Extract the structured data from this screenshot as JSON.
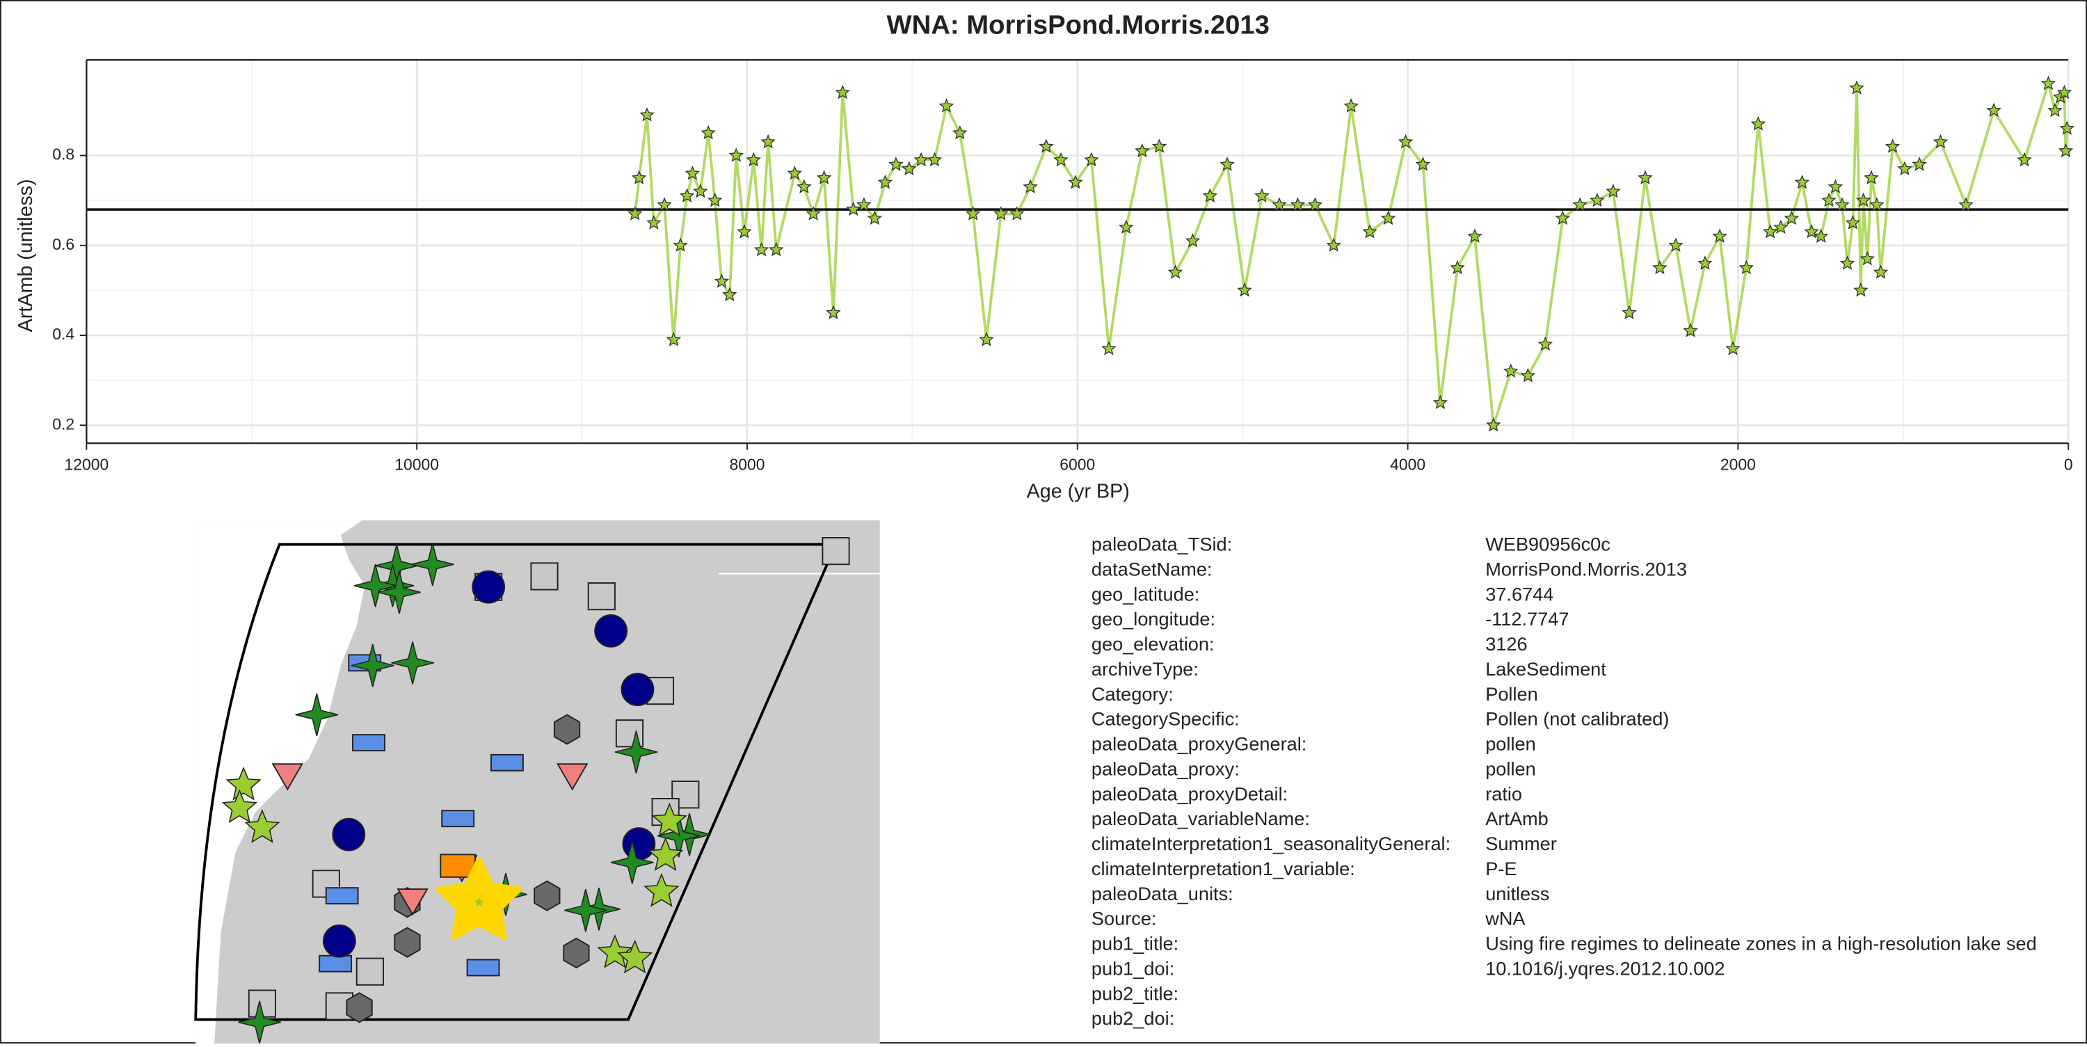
{
  "chart_data": {
    "type": "line",
    "title": "WNA: MorrisPond.Morris.2013",
    "xlabel": "Age (yr BP)",
    "ylabel": "ArtAmb (unitless)",
    "xlim": [
      12000,
      0
    ],
    "ylim": [
      0.16,
      0.995
    ],
    "xticks": [
      12000,
      10000,
      8000,
      6000,
      4000,
      2000,
      0
    ],
    "yticks": [
      0.2,
      0.4,
      0.6,
      0.8
    ],
    "grid": true,
    "marker": "star",
    "color": "#9acd32",
    "hline": 0.68,
    "x": [
      8679,
      8654,
      8606,
      8565,
      8501,
      8445,
      8404,
      8364,
      8331,
      8283,
      8235,
      8195,
      8154,
      8106,
      8066,
      8017,
      7961,
      7913,
      7873,
      7824,
      7712,
      7655,
      7599,
      7534,
      7478,
      7422,
      7357,
      7293,
      7228,
      7164,
      7099,
      7019,
      6946,
      6865,
      6793,
      6712,
      6632,
      6551,
      6463,
      6366,
      6285,
      6189,
      6100,
      6012,
      5915,
      5810,
      5705,
      5608,
      5504,
      5407,
      5302,
      5197,
      5093,
      4988,
      4883,
      4778,
      4666,
      4561,
      4448,
      4343,
      4230,
      4118,
      4013,
      3908,
      3803,
      3699,
      3594,
      3481,
      3376,
      3272,
      3167,
      3062,
      2957,
      2853,
      2756,
      2659,
      2562,
      2474,
      2377,
      2288,
      2200,
      2111,
      2031,
      1950,
      1878,
      1805,
      1741,
      1676,
      1612,
      1555,
      1498,
      1450,
      1410,
      1370,
      1338,
      1305,
      1281,
      1257,
      1241,
      1217,
      1193,
      1160,
      1136,
      1064,
      991,
      902,
      774,
      620,
      451,
      266,
      121,
      81,
      48,
      24,
      16,
      8
    ],
    "values": [
      0.67,
      0.75,
      0.89,
      0.65,
      0.69,
      0.39,
      0.6,
      0.71,
      0.76,
      0.72,
      0.85,
      0.7,
      0.52,
      0.49,
      0.8,
      0.63,
      0.79,
      0.59,
      0.83,
      0.59,
      0.76,
      0.73,
      0.67,
      0.75,
      0.45,
      0.94,
      0.68,
      0.69,
      0.66,
      0.74,
      0.78,
      0.77,
      0.79,
      0.79,
      0.91,
      0.85,
      0.67,
      0.39,
      0.67,
      0.67,
      0.73,
      0.82,
      0.79,
      0.74,
      0.79,
      0.37,
      0.64,
      0.81,
      0.82,
      0.54,
      0.61,
      0.71,
      0.78,
      0.5,
      0.71,
      0.69,
      0.69,
      0.69,
      0.6,
      0.91,
      0.63,
      0.66,
      0.83,
      0.78,
      0.25,
      0.55,
      0.62,
      0.2,
      0.32,
      0.31,
      0.38,
      0.66,
      0.69,
      0.7,
      0.72,
      0.45,
      0.75,
      0.55,
      0.6,
      0.41,
      0.56,
      0.62,
      0.37,
      0.55,
      0.87,
      0.63,
      0.64,
      0.66,
      0.74,
      0.63,
      0.62,
      0.7,
      0.73,
      0.69,
      0.56,
      0.65,
      0.95,
      0.5,
      0.7,
      0.57,
      0.75,
      0.69,
      0.54,
      0.82,
      0.77,
      0.78,
      0.83,
      0.69,
      0.9,
      0.79,
      0.96,
      0.9,
      0.93,
      0.94,
      0.81,
      0.86
    ]
  },
  "metadata": {
    "rows": [
      [
        "paleoData_TSid:",
        "WEB90956c0c"
      ],
      [
        "dataSetName:",
        "MorrisPond.Morris.2013"
      ],
      [
        "geo_latitude:",
        "37.6744"
      ],
      [
        "geo_longitude:",
        "-112.7747"
      ],
      [
        "geo_elevation:",
        "3126"
      ],
      [
        "archiveType:",
        "LakeSediment"
      ],
      [
        "Category:",
        "Pollen"
      ],
      [
        "CategorySpecific:",
        "Pollen (not calibrated)"
      ],
      [
        "paleoData_proxyGeneral:",
        "pollen"
      ],
      [
        "paleoData_proxy:",
        "pollen"
      ],
      [
        "paleoData_proxyDetail:",
        "ratio"
      ],
      [
        "paleoData_variableName:",
        "ArtAmb"
      ],
      [
        "climateInterpretation1_seasonalityGeneral:",
        "Summer"
      ],
      [
        "climateInterpretation1_variable:",
        "P-E"
      ],
      [
        "paleoData_units:",
        "unitless"
      ],
      [
        "Source:",
        "wNA"
      ],
      [
        "pub1_title:",
        "Using fire regimes to delineate zones in a high-resolution lake sed"
      ],
      [
        "pub1_doi:",
        "10.1016/j.yqres.2012.10.002"
      ],
      [
        "pub2_title:"
      ],
      [
        "pub2_doi:"
      ]
    ]
  }
}
